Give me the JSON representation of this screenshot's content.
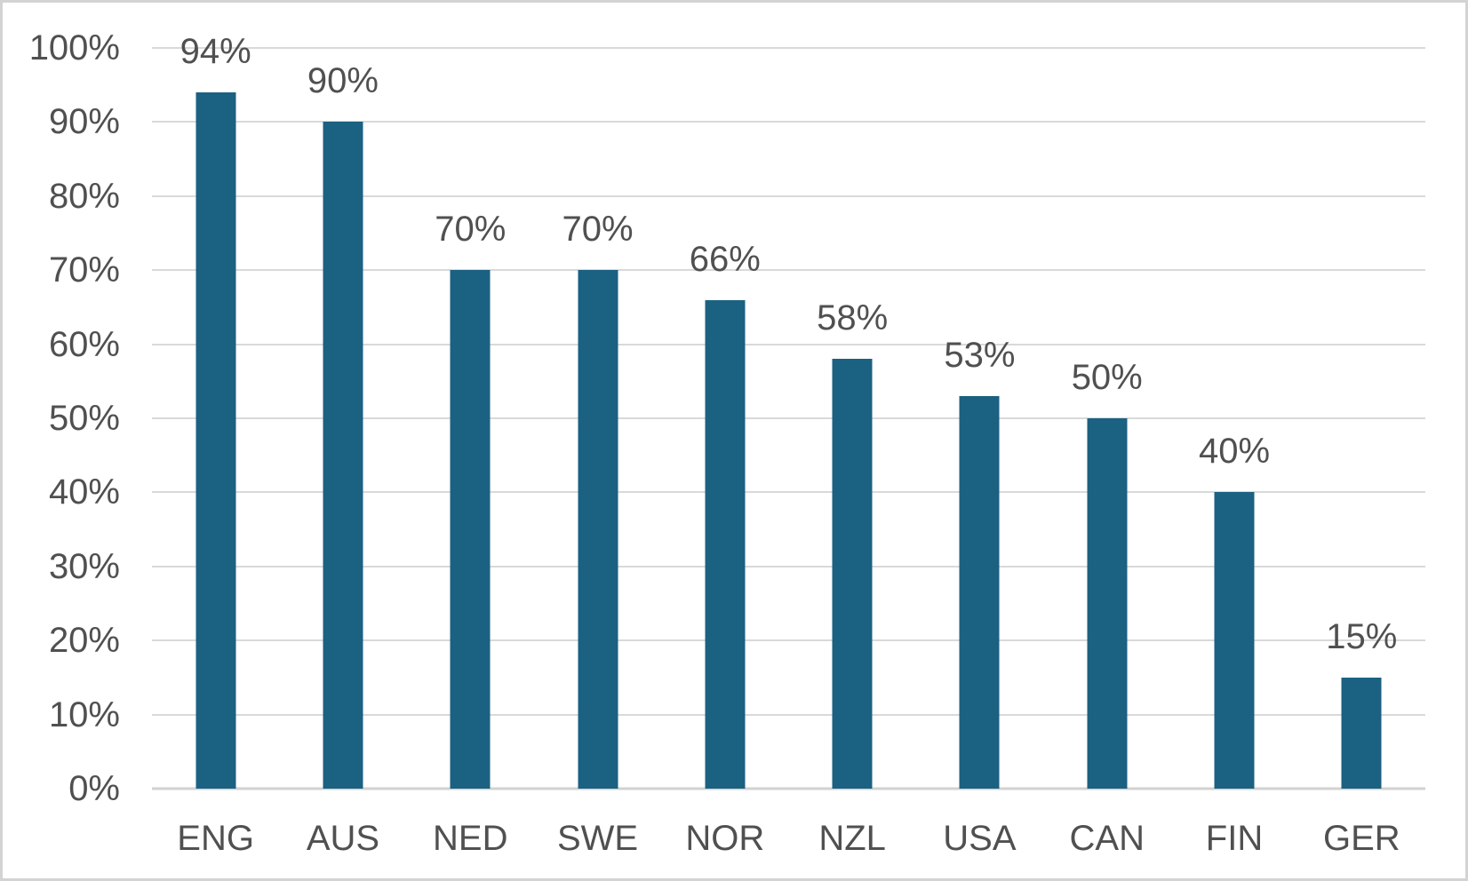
{
  "chart_data": {
    "type": "bar",
    "title": "",
    "xlabel": "",
    "ylabel": "",
    "categories": [
      "ENG",
      "AUS",
      "NED",
      "SWE",
      "NOR",
      "NZL",
      "USA",
      "CAN",
      "FIN",
      "GER"
    ],
    "values": [
      94,
      90,
      70,
      70,
      66,
      58,
      53,
      50,
      40,
      15
    ],
    "data_labels": [
      "94%",
      "90%",
      "70%",
      "70%",
      "66%",
      "58%",
      "53%",
      "50%",
      "40%",
      "15%"
    ],
    "y_axis": {
      "min": 0,
      "max": 100,
      "step": 10,
      "tick_labels": [
        "0%",
        "10%",
        "20%",
        "30%",
        "40%",
        "50%",
        "60%",
        "70%",
        "80%",
        "90%",
        "100%"
      ]
    },
    "grid": "horizontal",
    "legend": "none",
    "style": {
      "bar_color": "#1b6181",
      "gridline_color": "#d9d9d9",
      "axis_line_color": "#d2d2d2",
      "text_color": "#505050",
      "frame_border_color": "#d3d3d3",
      "background_color": "#ffffff"
    }
  }
}
